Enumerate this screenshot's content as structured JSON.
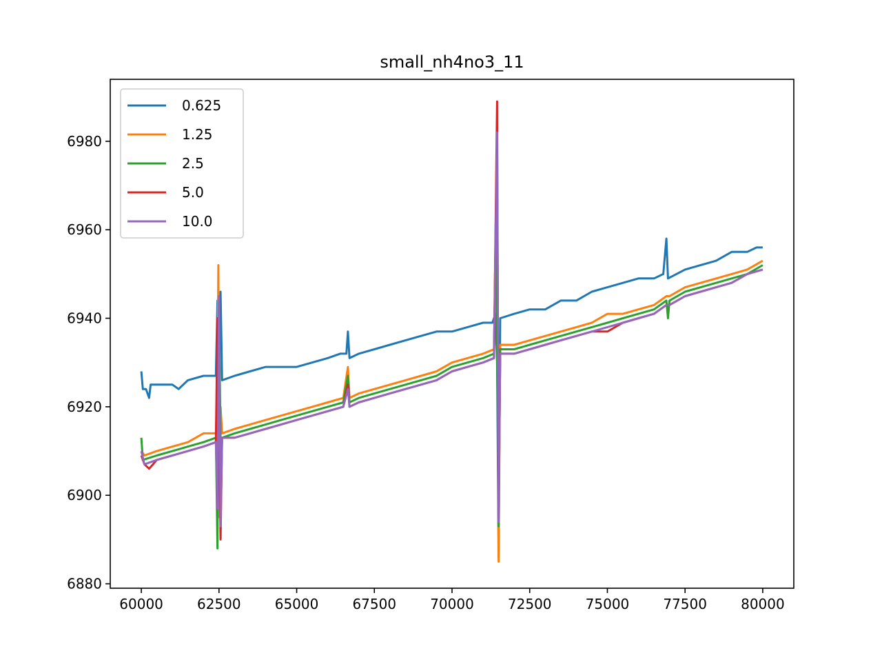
{
  "chart_data": {
    "type": "line",
    "title": "small_nh4no3_11",
    "xlabel": "",
    "ylabel": "",
    "xlim": [
      59000,
      81000
    ],
    "ylim": [
      6879,
      6994
    ],
    "x_ticks": [
      60000,
      62500,
      65000,
      67500,
      70000,
      72500,
      75000,
      77500,
      80000
    ],
    "y_ticks": [
      6880,
      6900,
      6920,
      6940,
      6960,
      6980
    ],
    "legend": {
      "position": "upper-left"
    },
    "grid": false,
    "series": [
      {
        "name": "0.625",
        "color": "#1f77b4",
        "points": [
          [
            60000,
            6928
          ],
          [
            60050,
            6924
          ],
          [
            60150,
            6924
          ],
          [
            60250,
            6922
          ],
          [
            60300,
            6925
          ],
          [
            60600,
            6925
          ],
          [
            61000,
            6925
          ],
          [
            61200,
            6924
          ],
          [
            61500,
            6926
          ],
          [
            62000,
            6927
          ],
          [
            62400,
            6927
          ],
          [
            62450,
            6944
          ],
          [
            62480,
            6924
          ],
          [
            62550,
            6946
          ],
          [
            62600,
            6926
          ],
          [
            63000,
            6927
          ],
          [
            63500,
            6928
          ],
          [
            64000,
            6929
          ],
          [
            64500,
            6929
          ],
          [
            65000,
            6929
          ],
          [
            65500,
            6930
          ],
          [
            66000,
            6931
          ],
          [
            66400,
            6932
          ],
          [
            66600,
            6932
          ],
          [
            66650,
            6937
          ],
          [
            66700,
            6931
          ],
          [
            67000,
            6932
          ],
          [
            67500,
            6933
          ],
          [
            68000,
            6934
          ],
          [
            68500,
            6935
          ],
          [
            69000,
            6936
          ],
          [
            69500,
            6937
          ],
          [
            70000,
            6937
          ],
          [
            70500,
            6938
          ],
          [
            71000,
            6939
          ],
          [
            71300,
            6939
          ],
          [
            71400,
            6941
          ],
          [
            71450,
            6930
          ],
          [
            71500,
            6886
          ],
          [
            71550,
            6940
          ],
          [
            72000,
            6941
          ],
          [
            72500,
            6942
          ],
          [
            73000,
            6942
          ],
          [
            73500,
            6944
          ],
          [
            74000,
            6944
          ],
          [
            74500,
            6946
          ],
          [
            75000,
            6947
          ],
          [
            75500,
            6948
          ],
          [
            76000,
            6949
          ],
          [
            76500,
            6949
          ],
          [
            76800,
            6950
          ],
          [
            76900,
            6958
          ],
          [
            76950,
            6949
          ],
          [
            77500,
            6951
          ],
          [
            78000,
            6952
          ],
          [
            78500,
            6953
          ],
          [
            79000,
            6955
          ],
          [
            79500,
            6955
          ],
          [
            79800,
            6956
          ],
          [
            80000,
            6956
          ]
        ]
      },
      {
        "name": "1.25",
        "color": "#ff7f0e",
        "points": [
          [
            60000,
            6910
          ],
          [
            60100,
            6909
          ],
          [
            60500,
            6910
          ],
          [
            61000,
            6911
          ],
          [
            61500,
            6912
          ],
          [
            62000,
            6914
          ],
          [
            62400,
            6914
          ],
          [
            62450,
            6925
          ],
          [
            62480,
            6952
          ],
          [
            62520,
            6895
          ],
          [
            62550,
            6920
          ],
          [
            62600,
            6914
          ],
          [
            63000,
            6915
          ],
          [
            63500,
            6916
          ],
          [
            64000,
            6917
          ],
          [
            64500,
            6918
          ],
          [
            65000,
            6919
          ],
          [
            65500,
            6920
          ],
          [
            66000,
            6921
          ],
          [
            66500,
            6922
          ],
          [
            66650,
            6929
          ],
          [
            66700,
            6922
          ],
          [
            67000,
            6923
          ],
          [
            67500,
            6924
          ],
          [
            68000,
            6925
          ],
          [
            68500,
            6926
          ],
          [
            69000,
            6927
          ],
          [
            69500,
            6928
          ],
          [
            70000,
            6930
          ],
          [
            70500,
            6931
          ],
          [
            71000,
            6932
          ],
          [
            71350,
            6933
          ],
          [
            71450,
            6983
          ],
          [
            71500,
            6885
          ],
          [
            71550,
            6934
          ],
          [
            72000,
            6934
          ],
          [
            72500,
            6935
          ],
          [
            73000,
            6936
          ],
          [
            73500,
            6937
          ],
          [
            74000,
            6938
          ],
          [
            74500,
            6939
          ],
          [
            75000,
            6941
          ],
          [
            75500,
            6941
          ],
          [
            76000,
            6942
          ],
          [
            76500,
            6943
          ],
          [
            76900,
            6945
          ],
          [
            77000,
            6945
          ],
          [
            77500,
            6947
          ],
          [
            78000,
            6948
          ],
          [
            78500,
            6949
          ],
          [
            79000,
            6950
          ],
          [
            79500,
            6951
          ],
          [
            80000,
            6953
          ]
        ]
      },
      {
        "name": "2.5",
        "color": "#2ca02c",
        "points": [
          [
            60000,
            6913
          ],
          [
            60050,
            6908
          ],
          [
            60500,
            6909
          ],
          [
            61000,
            6910
          ],
          [
            61500,
            6911
          ],
          [
            62000,
            6912
          ],
          [
            62400,
            6913
          ],
          [
            62450,
            6888
          ],
          [
            62500,
            6944
          ],
          [
            62550,
            6912
          ],
          [
            62600,
            6913
          ],
          [
            63000,
            6914
          ],
          [
            63500,
            6915
          ],
          [
            64000,
            6916
          ],
          [
            64500,
            6917
          ],
          [
            65000,
            6918
          ],
          [
            65500,
            6919
          ],
          [
            66000,
            6920
          ],
          [
            66500,
            6921
          ],
          [
            66650,
            6927
          ],
          [
            66700,
            6921
          ],
          [
            67000,
            6922
          ],
          [
            67500,
            6923
          ],
          [
            68000,
            6924
          ],
          [
            68500,
            6925
          ],
          [
            69000,
            6926
          ],
          [
            69500,
            6927
          ],
          [
            70000,
            6929
          ],
          [
            70500,
            6930
          ],
          [
            71000,
            6931
          ],
          [
            71350,
            6932
          ],
          [
            71420,
            6963
          ],
          [
            71500,
            6893
          ],
          [
            71550,
            6933
          ],
          [
            72000,
            6933
          ],
          [
            72500,
            6934
          ],
          [
            73000,
            6935
          ],
          [
            73500,
            6936
          ],
          [
            74000,
            6937
          ],
          [
            74500,
            6938
          ],
          [
            75000,
            6939
          ],
          [
            75500,
            6940
          ],
          [
            76000,
            6941
          ],
          [
            76500,
            6942
          ],
          [
            76900,
            6944
          ],
          [
            76950,
            6940
          ],
          [
            77000,
            6944
          ],
          [
            77500,
            6946
          ],
          [
            78000,
            6947
          ],
          [
            78500,
            6948
          ],
          [
            79000,
            6949
          ],
          [
            79500,
            6950
          ],
          [
            80000,
            6952
          ]
        ]
      },
      {
        "name": "5.0",
        "color": "#d62728",
        "points": [
          [
            60000,
            6909
          ],
          [
            60100,
            6907
          ],
          [
            60250,
            6906
          ],
          [
            60500,
            6908
          ],
          [
            61000,
            6909
          ],
          [
            61500,
            6910
          ],
          [
            62000,
            6911
          ],
          [
            62400,
            6912
          ],
          [
            62450,
            6940
          ],
          [
            62550,
            6890
          ],
          [
            62600,
            6913
          ],
          [
            63000,
            6913
          ],
          [
            63500,
            6914
          ],
          [
            64000,
            6915
          ],
          [
            64500,
            6916
          ],
          [
            65000,
            6917
          ],
          [
            65500,
            6918
          ],
          [
            66000,
            6919
          ],
          [
            66500,
            6920
          ],
          [
            66650,
            6925
          ],
          [
            66700,
            6920
          ],
          [
            67000,
            6921
          ],
          [
            67500,
            6922
          ],
          [
            68000,
            6923
          ],
          [
            68500,
            6924
          ],
          [
            69000,
            6925
          ],
          [
            69500,
            6926
          ],
          [
            70000,
            6928
          ],
          [
            70500,
            6929
          ],
          [
            71000,
            6930
          ],
          [
            71350,
            6931
          ],
          [
            71450,
            6989
          ],
          [
            71500,
            6895
          ],
          [
            71550,
            6932
          ],
          [
            72000,
            6932
          ],
          [
            72500,
            6933
          ],
          [
            73000,
            6934
          ],
          [
            73500,
            6935
          ],
          [
            74000,
            6936
          ],
          [
            74500,
            6937
          ],
          [
            75000,
            6937
          ],
          [
            75500,
            6939
          ],
          [
            76000,
            6940
          ],
          [
            76500,
            6941
          ],
          [
            76900,
            6943
          ],
          [
            77000,
            6943
          ],
          [
            77500,
            6945
          ],
          [
            78000,
            6946
          ],
          [
            78500,
            6947
          ],
          [
            79000,
            6948
          ],
          [
            79500,
            6950
          ],
          [
            80000,
            6951
          ]
        ]
      },
      {
        "name": "10.0",
        "color": "#9467bd",
        "points": [
          [
            60000,
            6910
          ],
          [
            60100,
            6907
          ],
          [
            60500,
            6908
          ],
          [
            61000,
            6909
          ],
          [
            61500,
            6910
          ],
          [
            62000,
            6911
          ],
          [
            62400,
            6912
          ],
          [
            62450,
            6897
          ],
          [
            62500,
            6945
          ],
          [
            62550,
            6893
          ],
          [
            62600,
            6913
          ],
          [
            63000,
            6913
          ],
          [
            63500,
            6914
          ],
          [
            64000,
            6915
          ],
          [
            64500,
            6916
          ],
          [
            65000,
            6917
          ],
          [
            65500,
            6918
          ],
          [
            66000,
            6919
          ],
          [
            66500,
            6920
          ],
          [
            66650,
            6924
          ],
          [
            66700,
            6920
          ],
          [
            67000,
            6921
          ],
          [
            67500,
            6922
          ],
          [
            68000,
            6923
          ],
          [
            68500,
            6924
          ],
          [
            69000,
            6925
          ],
          [
            69500,
            6926
          ],
          [
            70000,
            6928
          ],
          [
            70500,
            6929
          ],
          [
            71000,
            6930
          ],
          [
            71350,
            6931
          ],
          [
            71450,
            6982
          ],
          [
            71500,
            6894
          ],
          [
            71550,
            6932
          ],
          [
            72000,
            6932
          ],
          [
            72500,
            6933
          ],
          [
            73000,
            6934
          ],
          [
            73500,
            6935
          ],
          [
            74000,
            6936
          ],
          [
            74500,
            6937
          ],
          [
            75000,
            6938
          ],
          [
            75500,
            6939
          ],
          [
            76000,
            6940
          ],
          [
            76500,
            6941
          ],
          [
            76900,
            6943
          ],
          [
            77000,
            6943
          ],
          [
            77500,
            6945
          ],
          [
            78000,
            6946
          ],
          [
            78500,
            6947
          ],
          [
            79000,
            6948
          ],
          [
            79500,
            6950
          ],
          [
            80000,
            6951
          ]
        ]
      }
    ]
  }
}
